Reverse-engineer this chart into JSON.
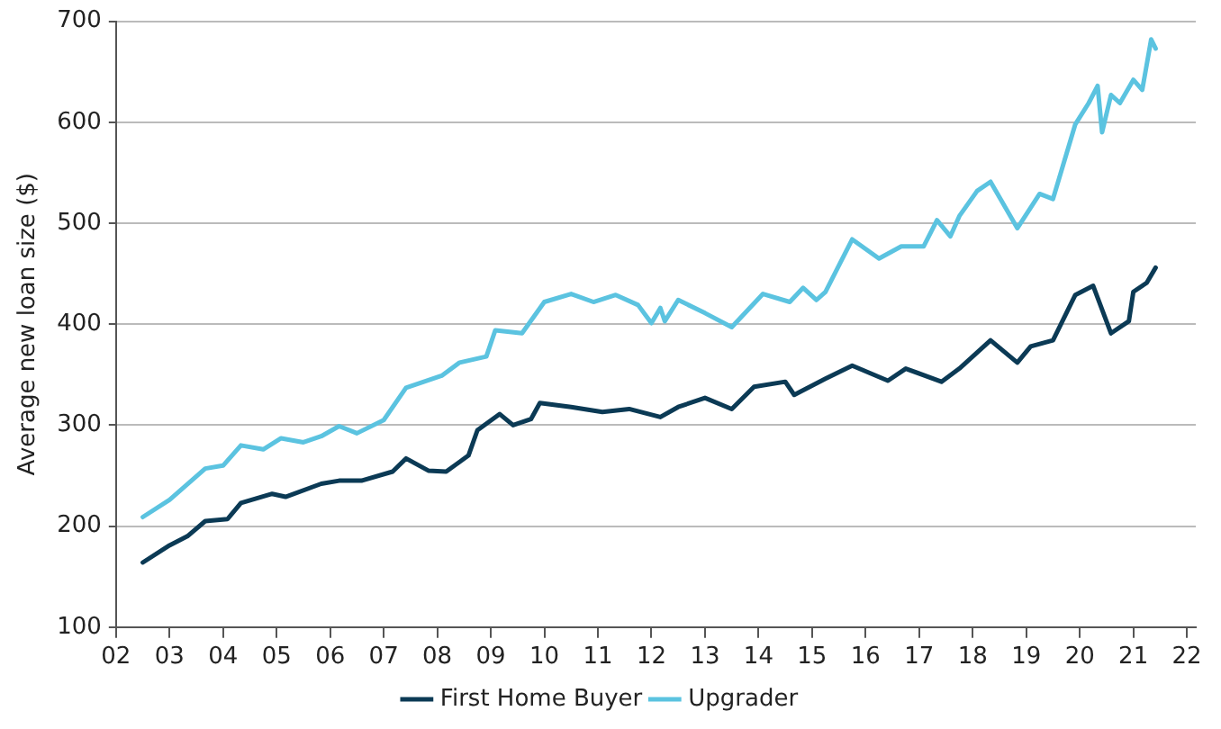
{
  "chart_data": {
    "type": "line",
    "ylabel": "Average new loan size ($)",
    "xlim": [
      "2002",
      "2022-03"
    ],
    "xticks": [
      {
        "value": "2002",
        "label": "02"
      },
      {
        "value": "2003",
        "label": "03"
      },
      {
        "value": "2004",
        "label": "04"
      },
      {
        "value": "2005",
        "label": "05"
      },
      {
        "value": "2006",
        "label": "06"
      },
      {
        "value": "2007",
        "label": "07"
      },
      {
        "value": "2008",
        "label": "08"
      },
      {
        "value": "2009",
        "label": "09"
      },
      {
        "value": "2010",
        "label": "10"
      },
      {
        "value": "2011",
        "label": "11"
      },
      {
        "value": "2012",
        "label": "12"
      },
      {
        "value": "2013",
        "label": "13"
      },
      {
        "value": "2014",
        "label": "14"
      },
      {
        "value": "2015",
        "label": "15"
      },
      {
        "value": "2016",
        "label": "16"
      },
      {
        "value": "2017",
        "label": "17"
      },
      {
        "value": "2018",
        "label": "18"
      },
      {
        "value": "2019",
        "label": "19"
      },
      {
        "value": "2020",
        "label": "20"
      },
      {
        "value": "2021",
        "label": "21"
      },
      {
        "value": "2022",
        "label": "22"
      }
    ],
    "ylim": [
      100,
      700
    ],
    "yticks": [
      100,
      200,
      300,
      400,
      500,
      600,
      700
    ],
    "grid": "y",
    "legend": "bottom",
    "marker": "none",
    "line_style": "solid",
    "series": [
      {
        "name": "First Home Buyer",
        "color": "#0b3a55",
        "x": [
          "2002-07",
          "2003-01",
          "2003-05",
          "2003-09",
          "2004-02",
          "2004-05",
          "2004-12",
          "2005-03",
          "2005-11",
          "2006-03",
          "2006-08",
          "2007-03",
          "2007-06",
          "2007-11",
          "2008-03",
          "2008-08",
          "2008-10",
          "2009-03",
          "2009-06",
          "2009-10",
          "2009-12",
          "2010-07",
          "2011-02",
          "2011-08",
          "2012-03",
          "2012-07",
          "2013-01",
          "2013-07",
          "2013-12",
          "2014-07",
          "2014-09",
          "2015-04",
          "2015-10",
          "2016-06",
          "2016-10",
          "2017-06",
          "2017-10",
          "2018-05",
          "2018-11",
          "2019-02",
          "2019-07",
          "2019-12",
          "2020-04",
          "2020-08",
          "2020-12",
          "2021-01",
          "2021-04",
          "2021-06"
        ],
        "values": [
          164,
          181,
          190,
          205,
          207,
          223,
          232,
          229,
          242,
          245,
          245,
          254,
          267,
          255,
          254,
          270,
          295,
          311,
          300,
          306,
          322,
          318,
          313,
          316,
          308,
          318,
          327,
          316,
          338,
          343,
          330,
          346,
          359,
          344,
          356,
          343,
          356,
          384,
          362,
          378,
          384,
          429,
          438,
          391,
          403,
          432,
          441,
          456
        ]
      },
      {
        "name": "Upgrader",
        "color": "#5bc3e0",
        "x": [
          "2002-07",
          "2003-01",
          "2003-09",
          "2004-01",
          "2004-05",
          "2004-10",
          "2005-02",
          "2005-07",
          "2005-11",
          "2006-03",
          "2006-07",
          "2007-01",
          "2007-06",
          "2007-10",
          "2008-02",
          "2008-06",
          "2008-12",
          "2009-02",
          "2009-08",
          "2010-01",
          "2010-07",
          "2010-12",
          "2011-05",
          "2011-10",
          "2012-01",
          "2012-03",
          "2012-04",
          "2012-07",
          "2013-01",
          "2013-07",
          "2014-02",
          "2014-08",
          "2014-11",
          "2015-02",
          "2015-04",
          "2015-10",
          "2016-04",
          "2016-09",
          "2017-02",
          "2017-05",
          "2017-08",
          "2017-10",
          "2018-02",
          "2018-05",
          "2018-11",
          "2019-04",
          "2019-07",
          "2019-12",
          "2020-03",
          "2020-05",
          "2020-06",
          "2020-08",
          "2020-10",
          "2021-01",
          "2021-03",
          "2021-05",
          "2021-06"
        ],
        "values": [
          209,
          226,
          257,
          260,
          280,
          276,
          287,
          283,
          289,
          299,
          292,
          305,
          337,
          343,
          349,
          362,
          368,
          394,
          391,
          422,
          430,
          422,
          429,
          419,
          401,
          416,
          403,
          424,
          411,
          397,
          430,
          422,
          436,
          424,
          432,
          484,
          465,
          477,
          477,
          503,
          487,
          507,
          532,
          541,
          495,
          529,
          524,
          598,
          619,
          636,
          590,
          627,
          619,
          642,
          632,
          682,
          673
        ]
      }
    ]
  }
}
